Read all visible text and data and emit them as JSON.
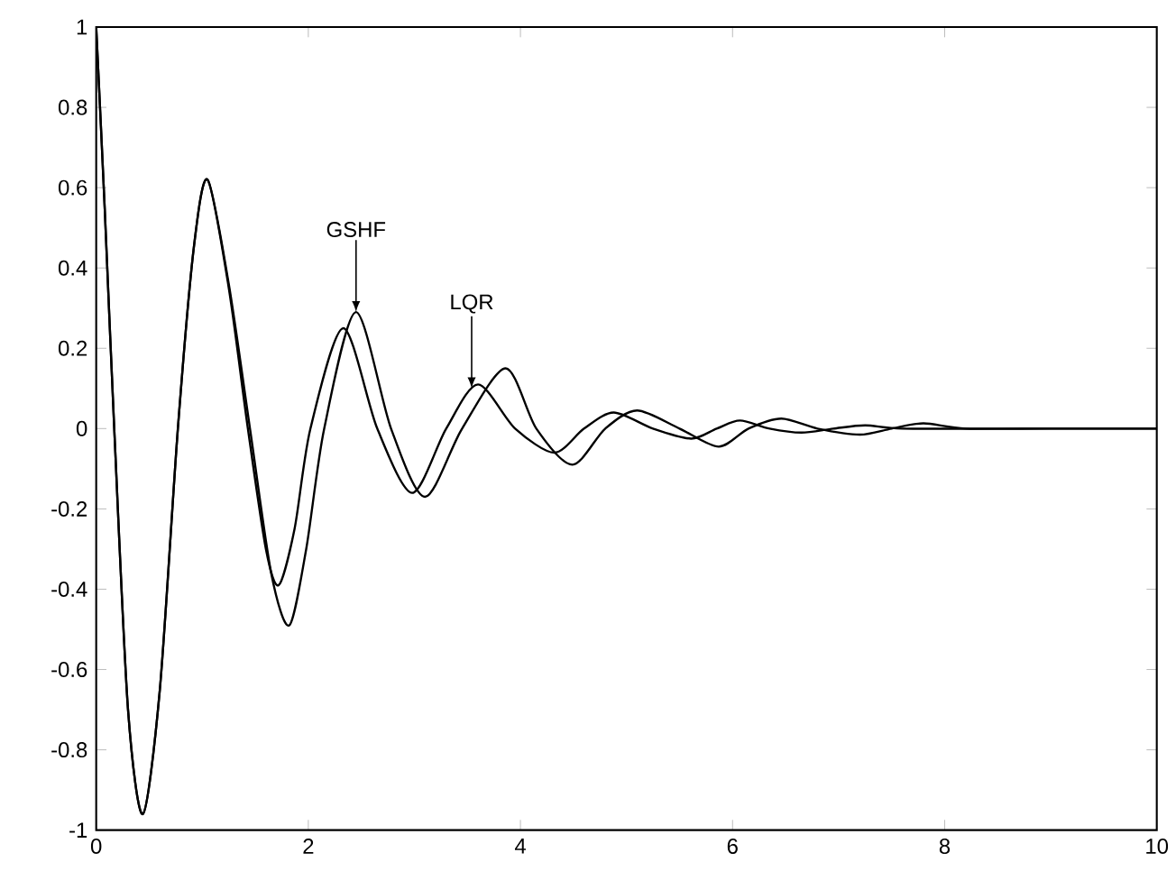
{
  "chart_data": {
    "type": "line",
    "series": [
      {
        "color": "#000000",
        "x": [
          0,
          0.08,
          0.17,
          0.3,
          0.44,
          0.6,
          0.77,
          0.92,
          1.05,
          1.25,
          1.43,
          1.6,
          1.72,
          1.87,
          2.02,
          2.33,
          2.65,
          2.98,
          3.3,
          3.6,
          3.95,
          4.32,
          4.6,
          4.88,
          5.25,
          5.61,
          5.85,
          6.07,
          6.35,
          6.65,
          6.95,
          7.25,
          7.6,
          8.5,
          10
        ],
        "values": [
          1,
          0.55,
          0,
          -0.7,
          -0.96,
          -0.65,
          0,
          0.45,
          0.62,
          0.35,
          0,
          -0.3,
          -0.39,
          -0.25,
          0,
          0.25,
          0,
          -0.16,
          0,
          0.11,
          0,
          -0.06,
          0,
          0.04,
          0,
          -0.025,
          0,
          0.02,
          0,
          -0.01,
          0,
          0.008,
          0,
          0,
          0
        ]
      },
      {
        "color": "#000000",
        "x": [
          0,
          0.08,
          0.17,
          0.3,
          0.44,
          0.6,
          0.77,
          0.92,
          1.05,
          1.25,
          1.45,
          1.65,
          1.82,
          1.98,
          2.15,
          2.45,
          2.78,
          3.1,
          3.45,
          3.86,
          4.15,
          4.49,
          4.8,
          5.1,
          5.5,
          5.87,
          6.15,
          6.46,
          6.8,
          7.2,
          7.5,
          7.8,
          8.2,
          9,
          10
        ],
        "values": [
          1,
          0.55,
          0,
          -0.7,
          -0.96,
          -0.65,
          0,
          0.45,
          0.62,
          0.36,
          0,
          -0.36,
          -0.49,
          -0.3,
          0,
          0.29,
          0,
          -0.17,
          0,
          0.15,
          0,
          -0.09,
          0,
          0.045,
          0,
          -0.045,
          0,
          0.025,
          0,
          -0.015,
          0,
          0.013,
          0,
          0,
          0
        ]
      }
    ],
    "annotations": [
      {
        "text": "GSHF",
        "x": 2.45,
        "y": 0.29
      },
      {
        "text": "LQR",
        "x": 3.54,
        "y": 0.1
      }
    ],
    "xlim": [
      0,
      10
    ],
    "ylim": [
      -1,
      1
    ],
    "xticks": [
      0,
      2,
      4,
      6,
      8,
      10
    ],
    "yticks": [
      -1,
      -0.8,
      -0.6,
      -0.4,
      -0.2,
      0,
      0.2,
      0.4,
      0.6,
      0.8,
      1
    ],
    "marker": "none",
    "line_style": "solid"
  }
}
